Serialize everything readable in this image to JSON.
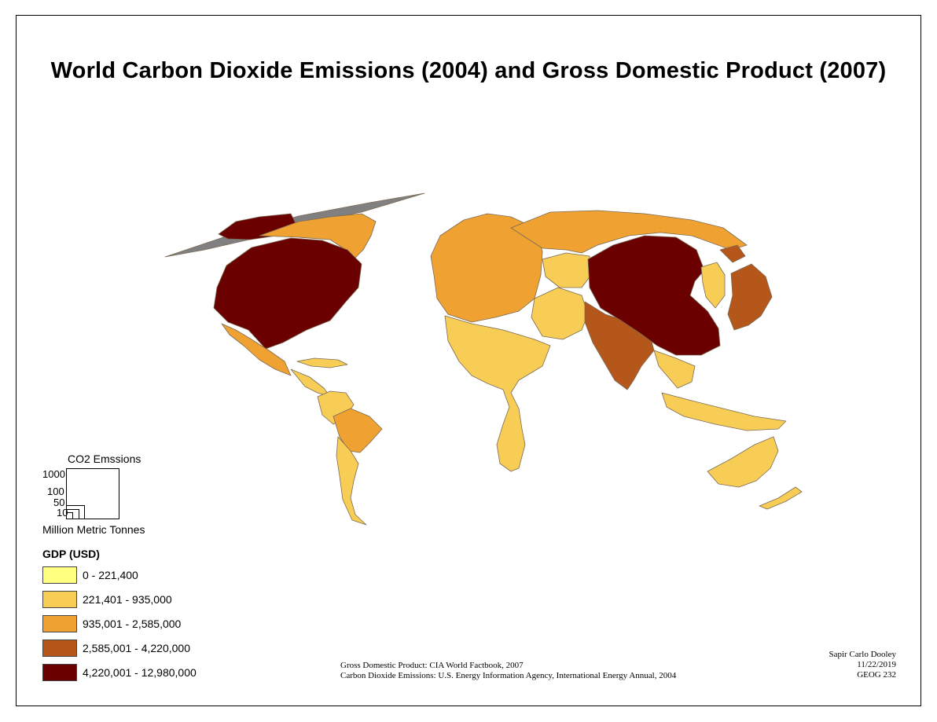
{
  "title": "World Carbon Dioxide Emissions (2004) and Gross Domestic Product (2007)",
  "co2_legend": {
    "title": "CO2 Emssions",
    "unit": "Million Metric Tonnes",
    "sizes": [
      {
        "label": "1000",
        "value": 1000
      },
      {
        "label": "100",
        "value": 100
      },
      {
        "label": "50",
        "value": 50
      },
      {
        "label": "10",
        "value": 10
      }
    ]
  },
  "gdp_legend": {
    "title": "GDP (USD)",
    "classes": [
      {
        "label": "0 - 221,400",
        "color": "#ffff80"
      },
      {
        "label": "221,401 - 935,000",
        "color": "#f8cd56"
      },
      {
        "label": "935,001 - 2,585,000",
        "color": "#efa231"
      },
      {
        "label": "2,585,001 - 4,220,000",
        "color": "#b5561a"
      },
      {
        "label": "4,220,001 - 12,980,000",
        "color": "#6b0000"
      }
    ]
  },
  "sources": {
    "line1": "Gross Domestic Product: CIA World Factbook, 2007",
    "line2": "Carbon Dioxide Emissions: U.S. Energy Information Agency, International Energy Annual, 2004"
  },
  "credits": {
    "author": "Sapir Carlo Dooley",
    "date": "11/22/2019",
    "course": "GEOG 232"
  },
  "map_regions": [
    {
      "name": "north-america",
      "class": 4
    },
    {
      "name": "canada-arctic",
      "class": 2
    },
    {
      "name": "alaska",
      "class": 4
    },
    {
      "name": "mexico",
      "class": 2
    },
    {
      "name": "central-america",
      "class": 1
    },
    {
      "name": "south-america-north",
      "class": 1
    },
    {
      "name": "brazil",
      "class": 2
    },
    {
      "name": "argentina-chile",
      "class": 1
    },
    {
      "name": "europe",
      "class": 2
    },
    {
      "name": "africa",
      "class": 1
    },
    {
      "name": "russia",
      "class": 2
    },
    {
      "name": "middle-east",
      "class": 1
    },
    {
      "name": "central-asia",
      "class": 1
    },
    {
      "name": "india",
      "class": 3
    },
    {
      "name": "china",
      "class": 4
    },
    {
      "name": "japan",
      "class": 3
    },
    {
      "name": "korea",
      "class": 1
    },
    {
      "name": "southeast-asia",
      "class": 1
    },
    {
      "name": "indonesia",
      "class": 1
    },
    {
      "name": "australia",
      "class": 1
    },
    {
      "name": "new-zealand",
      "class": 1
    }
  ]
}
